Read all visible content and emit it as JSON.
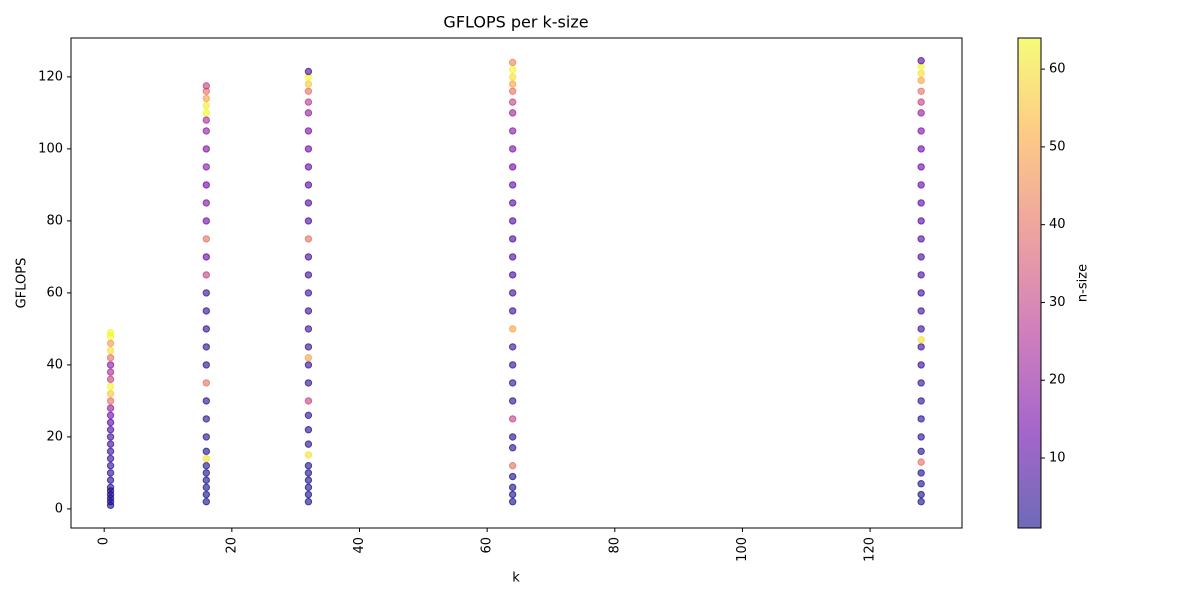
{
  "chart_data": {
    "type": "scatter",
    "title": "GFLOPS per k-size",
    "x_label": "k",
    "y_label": "GFLOPS",
    "colorbar_label": "n-size",
    "colormap": [
      "#0d0887",
      "#6a00a8",
      "#b12a90",
      "#e16462",
      "#fca636",
      "#f0f921"
    ],
    "clim": [
      1,
      64
    ],
    "cticks": [
      10,
      20,
      30,
      40,
      50,
      60
    ],
    "xlim": [
      -5.2,
      134.4
    ],
    "xticks": [
      0,
      20,
      40,
      60,
      80,
      100,
      120
    ],
    "ylim": [
      -5.3,
      130.8
    ],
    "yticks": [
      0,
      20,
      40,
      60,
      80,
      100,
      120
    ],
    "series": [
      {
        "k": 1,
        "values": [
          1,
          2,
          3,
          4,
          5,
          6,
          8,
          10,
          12,
          14,
          16,
          18,
          20,
          22,
          24,
          26,
          28,
          30,
          32,
          34,
          36,
          38,
          40,
          42,
          44,
          46,
          48,
          49
        ],
        "n_size": [
          1,
          1,
          2,
          2,
          2,
          3,
          3,
          4,
          4,
          5,
          5,
          6,
          7,
          8,
          10,
          14,
          20,
          40,
          56,
          64,
          30,
          24,
          18,
          40,
          60,
          48,
          64,
          64
        ]
      },
      {
        "k": 16,
        "values": [
          2,
          4,
          6,
          8,
          10,
          12,
          14,
          16,
          20,
          25,
          30,
          35,
          40,
          45,
          50,
          55,
          60,
          65,
          70,
          75,
          80,
          85,
          90,
          95,
          100,
          105,
          108,
          110,
          112,
          114,
          116,
          117.5
        ],
        "n_size": [
          1,
          1,
          1,
          2,
          2,
          3,
          60,
          2,
          3,
          4,
          4,
          40,
          3,
          4,
          5,
          5,
          6,
          30,
          12,
          40,
          14,
          16,
          14,
          18,
          16,
          20,
          24,
          64,
          62,
          50,
          40,
          30
        ]
      },
      {
        "k": 32,
        "values": [
          2,
          4,
          6,
          8,
          10,
          12,
          15,
          18,
          22,
          26,
          30,
          35,
          40,
          42,
          45,
          50,
          55,
          60,
          65,
          70,
          75,
          80,
          85,
          90,
          95,
          100,
          105,
          110,
          113,
          116,
          118,
          120,
          121.5
        ],
        "n_size": [
          1,
          1,
          1,
          2,
          2,
          2,
          60,
          3,
          3,
          4,
          30,
          4,
          5,
          50,
          5,
          6,
          6,
          7,
          7,
          8,
          40,
          8,
          9,
          10,
          12,
          14,
          16,
          20,
          28,
          40,
          56,
          64,
          8
        ]
      },
      {
        "k": 64,
        "values": [
          2,
          4,
          6,
          9,
          12,
          17,
          20,
          25,
          30,
          35,
          40,
          45,
          50,
          55,
          60,
          65,
          70,
          75,
          80,
          85,
          90,
          95,
          100,
          105,
          110,
          113,
          116,
          118,
          120,
          122,
          124
        ],
        "n_size": [
          1,
          1,
          2,
          2,
          40,
          3,
          3,
          30,
          4,
          5,
          5,
          6,
          50,
          6,
          7,
          7,
          8,
          8,
          9,
          10,
          12,
          14,
          16,
          18,
          22,
          30,
          40,
          50,
          60,
          64,
          44
        ]
      },
      {
        "k": 128,
        "values": [
          2,
          4,
          7,
          10,
          13,
          16,
          20,
          25,
          30,
          35,
          40,
          45,
          47,
          50,
          55,
          60,
          65,
          70,
          75,
          80,
          85,
          90,
          95,
          100,
          105,
          110,
          113,
          116,
          119,
          121,
          123,
          124.5
        ],
        "n_size": [
          1,
          1,
          2,
          2,
          40,
          3,
          3,
          4,
          4,
          5,
          5,
          6,
          60,
          6,
          7,
          7,
          8,
          8,
          9,
          10,
          11,
          12,
          13,
          14,
          16,
          20,
          30,
          40,
          50,
          60,
          64,
          10
        ]
      }
    ]
  }
}
